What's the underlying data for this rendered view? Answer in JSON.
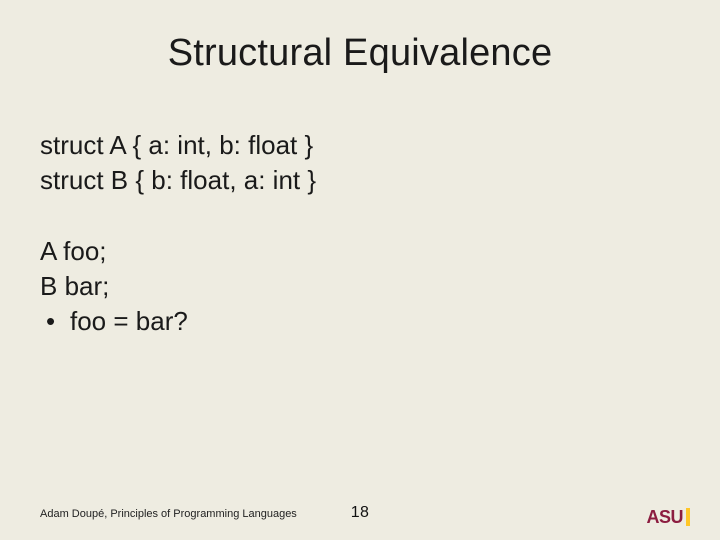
{
  "colors": {
    "background": "#eeece1",
    "text": "#1a1a1a",
    "asu_maroon": "#8c1d40",
    "asu_gold": "#ffc627"
  },
  "typography": {
    "title_fontsize": 38,
    "body_fontsize": 26,
    "footer_fontsize": 11,
    "pagenum_fontsize": 16,
    "font_family": "Arial"
  },
  "title": "Structural Equivalence",
  "body": {
    "line1": "struct A { a: int, b: float }",
    "line2": "struct B { b: float, a: int }",
    "line3": "A foo;",
    "line4": "B bar;",
    "bullet_symbol": "•",
    "bullet_text": "foo = bar?"
  },
  "footer": "Adam Doupé, Principles of Programming Languages",
  "page_number": "18",
  "logo": {
    "text": "ASU"
  }
}
